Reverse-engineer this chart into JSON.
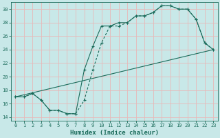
{
  "xlabel": "Humidex (Indice chaleur)",
  "ylabel": "",
  "background_color": "#c8e8e8",
  "grid_color": "#e8b8b8",
  "line_color": "#1a6b5a",
  "xlim": [
    -0.5,
    23.5
  ],
  "ylim": [
    13.5,
    31.0
  ],
  "xticks": [
    0,
    1,
    2,
    3,
    4,
    5,
    6,
    7,
    8,
    9,
    10,
    11,
    12,
    13,
    14,
    15,
    16,
    17,
    18,
    19,
    20,
    21,
    22,
    23
  ],
  "yticks": [
    14,
    16,
    18,
    20,
    22,
    24,
    26,
    28,
    30
  ],
  "line1_x": [
    0,
    1,
    2,
    3,
    4,
    5,
    6,
    7,
    8,
    9,
    10,
    11,
    12,
    13,
    14,
    15,
    16,
    17,
    18,
    19,
    20,
    21,
    22,
    23
  ],
  "line1_y": [
    17,
    17,
    17.5,
    16.5,
    15,
    15,
    14.5,
    14.5,
    16.5,
    21,
    25,
    27.5,
    27.5,
    28,
    29,
    29,
    29.5,
    30.5,
    30.5,
    30,
    30,
    28.5,
    25,
    24
  ],
  "line2_x": [
    0,
    1,
    2,
    3,
    4,
    5,
    6,
    7,
    8,
    9,
    10,
    11,
    12,
    13,
    14,
    15,
    16,
    17,
    18,
    19,
    20,
    21,
    22,
    23
  ],
  "line2_y": [
    17,
    17,
    17.5,
    16.5,
    15,
    15,
    14.5,
    14.5,
    21,
    24.5,
    27.5,
    27.5,
    28,
    28,
    29,
    29,
    29.5,
    30.5,
    30.5,
    30,
    30,
    28.5,
    25,
    24
  ],
  "line3_x": [
    0,
    23
  ],
  "line3_y": [
    17,
    24
  ],
  "tick_fontsize": 5.0,
  "xlabel_fontsize": 6.5
}
